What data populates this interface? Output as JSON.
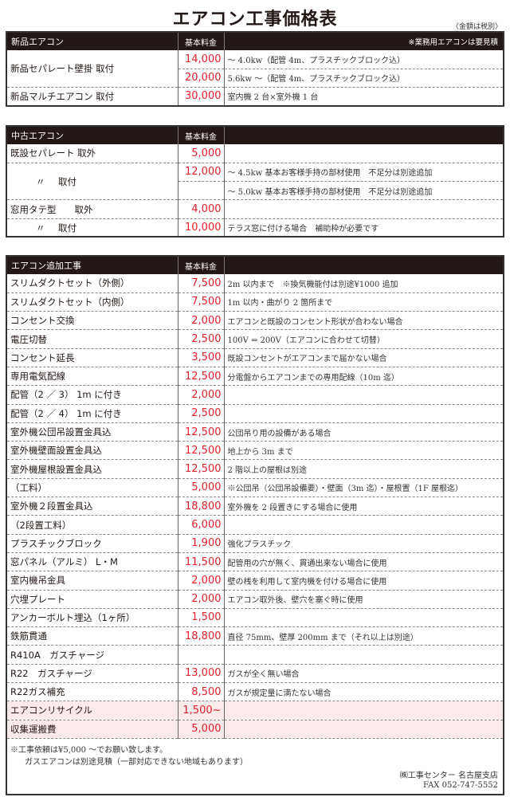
{
  "title": "エアコン工事価格表",
  "tax_note": "〈金額は税別〉",
  "colors": {
    "header_bg": "#231815",
    "price": "#e8202a",
    "highlight_row": "#fbeaea"
  },
  "new": {
    "header": "新品エアコン",
    "price_header": "基本料金",
    "note": "※業務用エアコンは要見積",
    "rows": [
      {
        "label": "新品セパレート壁掛 取付",
        "price": "14,000",
        "desc": "～ 4.0kw（配管 4m、プラスチックブロック込）"
      },
      {
        "price": "20,000",
        "desc": "5.6kw ～（配管 4m、プラスチックブロック込）"
      },
      {
        "label": "新品マルチエアコン 取付",
        "price": "30,000",
        "desc": "室内機 2 台×室外機 1 台"
      }
    ]
  },
  "used": {
    "header": "中古エアコン",
    "price_header": "基本料金",
    "rows": [
      {
        "label": "既設セパレート 取外",
        "price": "5,000",
        "desc": ""
      },
      {
        "ditto": "〃",
        "label": "取付",
        "price": "12,000",
        "desc": "～ 4.5kw 基本お客様手持の部材使用　不足分は別途追加"
      },
      {
        "price": "",
        "desc": "～ 5.0kw 基本お客様手持の部材使用　不足分は別途追加"
      },
      {
        "label": "窓用タテ型　　取外",
        "price": "4,000",
        "desc": ""
      },
      {
        "ditto": "〃",
        "label": "取付",
        "price": "10,000",
        "desc": "テラス窓に付ける場合　補助枠が必要です"
      }
    ]
  },
  "extra": {
    "header": "エアコン追加工事",
    "price_header": "基本料金",
    "rows": [
      {
        "label": "スリムダクトセット（外側）",
        "price": "7,500",
        "desc": "2m 以内まで　※換気機能付は別途¥1000 追加"
      },
      {
        "label": "スリムダクトセット（内側）",
        "price": "7,500",
        "desc": "1m 以内・曲がり 2 箇所まで"
      },
      {
        "label": "コンセント交換",
        "price": "2,000",
        "desc": "エアコンと既設のコンセント形状が合わない場合"
      },
      {
        "label": "電圧切替",
        "price": "2,500",
        "desc": "100V ⇔ 200V（エアコンに合わせて切替）"
      },
      {
        "label": "コンセント延長",
        "price": "3,500",
        "desc": "既設コンセントがエアコンまで届かない場合"
      },
      {
        "label": "専用電気配線",
        "price": "12,500",
        "desc": "分電盤からエアコンまでの専用配線（10m 迄）"
      },
      {
        "label": "配管（2 ／ 3） 1m に付き",
        "price": "2,000",
        "desc": ""
      },
      {
        "label": "配管（2 ／ 4） 1m に付き",
        "price": "2,500",
        "desc": ""
      },
      {
        "label": "室外機公団吊設置金具込",
        "price": "12,500",
        "desc": "公団吊り用の設備がある場合"
      },
      {
        "label": "室外機壁面設置金具込",
        "price": "12,500",
        "desc": "地上から 3m まで"
      },
      {
        "label": "室外機屋根設置金具込",
        "price": "12,500",
        "desc": "2 階以上の屋根は別途"
      },
      {
        "label": "（工料）",
        "price": "5,000",
        "desc": "※公団吊（公団吊設備要）・壁面（3m 迄）・屋根置（1F 屋根迄）"
      },
      {
        "label": "室外機２段置金具込",
        "price": "18,800",
        "desc": "室外機を 2 段置きにする場合に使用"
      },
      {
        "label": "（2段置工料）",
        "price": "6,000",
        "desc": ""
      },
      {
        "label": "プラスチックブロック",
        "price": "1,900",
        "desc": "強化プラスチック"
      },
      {
        "label": "窓パネル（アルミ） L・M",
        "price": "11,500",
        "desc": "配管用の穴が無く、貫通出来ない場合に使用"
      },
      {
        "label": "室内機吊金具",
        "price": "2,000",
        "desc": "壁の桟を利用して室内機を付ける場合に使用"
      },
      {
        "label": "穴埋プレート",
        "price": "2,000",
        "desc": "エアコン取外後、壁穴を塞ぐ時に使用"
      },
      {
        "label": "アンカーボルト埋込（1ヶ所）",
        "price": "1,500",
        "desc": ""
      },
      {
        "label": "鉄筋貫通",
        "price": "18,800",
        "desc": "直径 75mm、壁厚 200mm まで（それ以上は別途）"
      },
      {
        "label": "R410A　ガスチャージ",
        "price": "",
        "desc": ""
      },
      {
        "label": "R22　ガスチャージ",
        "price": "13,000",
        "desc": "ガスが全く無い場合"
      },
      {
        "label": "R22ガス補充",
        "price": "8,500",
        "desc": "ガスが規定量に満たない場合"
      },
      {
        "label": "エアコンリサイクル",
        "price": "1,500~",
        "desc": "",
        "highlight": true
      },
      {
        "label": "収集運搬費",
        "price": "5,000",
        "desc": "",
        "highlight": true
      }
    ]
  },
  "footer": {
    "note1": "※工事依頼は¥5,000 ～でお願い致します。",
    "note2": "ガスエアコンは別途見積（一部対応できない地域もあります）",
    "company": "㈱工事センター 名古屋支店",
    "fax": "FAX 052-747-5552"
  }
}
